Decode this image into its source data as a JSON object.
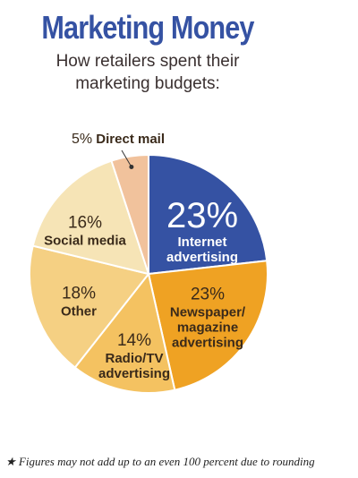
{
  "chart_data": {
    "type": "pie",
    "title": "Marketing Money",
    "subtitle": "How retailers spent their marketing budgets:",
    "categories": [
      "Internet advertising",
      "Newspaper/ magazine advertising",
      "Radio/TV advertising",
      "Other",
      "Social media",
      "Direct mail"
    ],
    "values": [
      23,
      23,
      14,
      18,
      16,
      5
    ],
    "value_labels": [
      "23%",
      "23%",
      "14%",
      "18%",
      "16%",
      "5%"
    ],
    "colors": [
      "#3552a3",
      "#efa223",
      "#f4c261",
      "#f5d083",
      "#f6e4b6",
      "#f1c29c"
    ],
    "footnote": "★ Figures may not add up to an even 100 percent due to rounding"
  }
}
